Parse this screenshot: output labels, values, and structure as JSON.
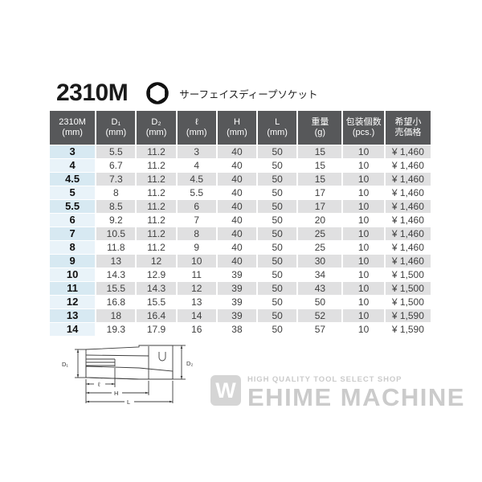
{
  "header": {
    "model": "2310M",
    "subtitle": "サーフェイスディープソケット",
    "drive_profile_icon": "surface-drive-profile-icon"
  },
  "table": {
    "columns": [
      {
        "id": "size",
        "lines": [
          "2310M",
          "(mm)"
        ]
      },
      {
        "id": "d1",
        "lines": [
          "D₁",
          "(mm)"
        ]
      },
      {
        "id": "d2",
        "lines": [
          "D₂",
          "(mm)"
        ]
      },
      {
        "id": "ell",
        "lines": [
          "ℓ",
          "(mm)"
        ]
      },
      {
        "id": "h",
        "lines": [
          "H",
          "(mm)"
        ]
      },
      {
        "id": "l",
        "lines": [
          "L",
          "(mm)"
        ]
      },
      {
        "id": "weight",
        "lines": [
          "重量",
          "(g)"
        ]
      },
      {
        "id": "pack-qty",
        "lines": [
          "包装個数",
          "(pcs.)"
        ]
      },
      {
        "id": "price",
        "lines": [
          "希望小",
          "売価格"
        ]
      }
    ],
    "rows": [
      [
        "3",
        "5.5",
        "11.2",
        "3",
        "40",
        "50",
        "15",
        "10",
        "¥ 1,460"
      ],
      [
        "4",
        "6.7",
        "11.2",
        "4",
        "40",
        "50",
        "15",
        "10",
        "¥ 1,460"
      ],
      [
        "4.5",
        "7.3",
        "11.2",
        "4.5",
        "40",
        "50",
        "15",
        "10",
        "¥ 1,460"
      ],
      [
        "5",
        "8",
        "11.2",
        "5.5",
        "40",
        "50",
        "17",
        "10",
        "¥ 1,460"
      ],
      [
        "5.5",
        "8.5",
        "11.2",
        "6",
        "40",
        "50",
        "17",
        "10",
        "¥ 1,460"
      ],
      [
        "6",
        "9.2",
        "11.2",
        "7",
        "40",
        "50",
        "20",
        "10",
        "¥ 1,460"
      ],
      [
        "7",
        "10.5",
        "11.2",
        "8",
        "40",
        "50",
        "25",
        "10",
        "¥ 1,460"
      ],
      [
        "8",
        "11.8",
        "11.2",
        "9",
        "40",
        "50",
        "25",
        "10",
        "¥ 1,460"
      ],
      [
        "9",
        "13",
        "12",
        "10",
        "40",
        "50",
        "30",
        "10",
        "¥ 1,460"
      ],
      [
        "10",
        "14.3",
        "12.9",
        "11",
        "39",
        "50",
        "34",
        "10",
        "¥ 1,500"
      ],
      [
        "11",
        "15.5",
        "14.3",
        "12",
        "39",
        "50",
        "43",
        "10",
        "¥ 1,500"
      ],
      [
        "12",
        "16.8",
        "15.5",
        "13",
        "39",
        "50",
        "50",
        "10",
        "¥ 1,500"
      ],
      [
        "13",
        "18",
        "16.4",
        "14",
        "39",
        "50",
        "52",
        "10",
        "¥ 1,590"
      ],
      [
        "14",
        "19.3",
        "17.9",
        "16",
        "38",
        "50",
        "57",
        "10",
        "¥ 1,590"
      ]
    ]
  },
  "diagram": {
    "labels": {
      "d1": "D₁",
      "d2": "D₂",
      "ell": "ℓ",
      "h": "H",
      "l": "L"
    }
  },
  "watermark": {
    "tagline": "HIGH QUALITY TOOL SELECT SHOP",
    "name": "EHIME MACHINE",
    "mark_letter": "W"
  },
  "colors": {
    "header_bg": "#57585a",
    "row_gray": "#e0e0e1",
    "row_blue_odd": "#d7e9f2",
    "row_blue_even": "#e9f3f9",
    "watermark": "#cbcbcb"
  }
}
